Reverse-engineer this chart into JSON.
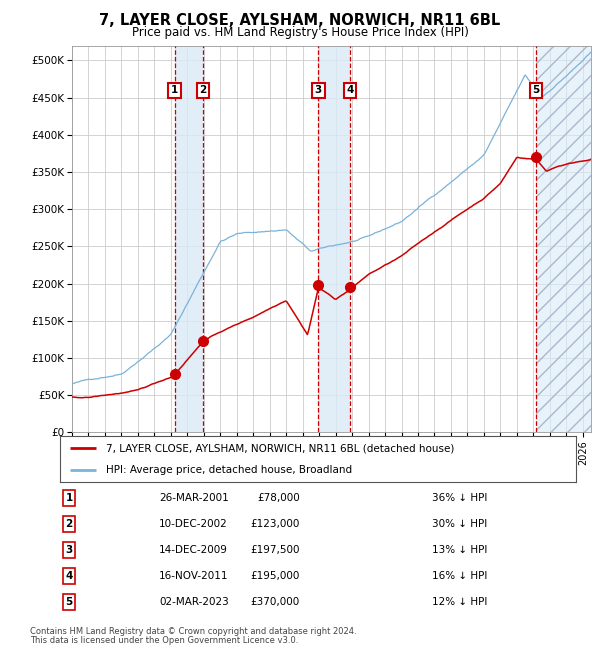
{
  "title": "7, LAYER CLOSE, AYLSHAM, NORWICH, NR11 6BL",
  "subtitle": "Price paid vs. HM Land Registry's House Price Index (HPI)",
  "legend_property": "7, LAYER CLOSE, AYLSHAM, NORWICH, NR11 6BL (detached house)",
  "legend_hpi": "HPI: Average price, detached house, Broadland",
  "footer1": "Contains HM Land Registry data © Crown copyright and database right 2024.",
  "footer2": "This data is licensed under the Open Government Licence v3.0.",
  "transactions": [
    {
      "num": 1,
      "date": "26-MAR-2001",
      "year": 2001.23,
      "price": 78000,
      "pct": "36% ↓ HPI"
    },
    {
      "num": 2,
      "date": "10-DEC-2002",
      "year": 2002.94,
      "price": 123000,
      "pct": "30% ↓ HPI"
    },
    {
      "num": 3,
      "date": "14-DEC-2009",
      "year": 2009.95,
      "price": 197500,
      "pct": "13% ↓ HPI"
    },
    {
      "num": 4,
      "date": "16-NOV-2011",
      "year": 2011.88,
      "price": 195000,
      "pct": "16% ↓ HPI"
    },
    {
      "num": 5,
      "date": "02-MAR-2023",
      "year": 2023.16,
      "price": 370000,
      "pct": "12% ↓ HPI"
    }
  ],
  "ylim": [
    0,
    520000
  ],
  "xlim_start": 1995.0,
  "xlim_end": 2026.5,
  "hpi_color": "#7ab3d9",
  "property_color": "#cc0000",
  "marker_color": "#cc0000",
  "dashed_line_color": "#cc0000",
  "shade_color": "#daeaf7",
  "grid_color": "#cccccc",
  "bg_color": "#ffffff"
}
